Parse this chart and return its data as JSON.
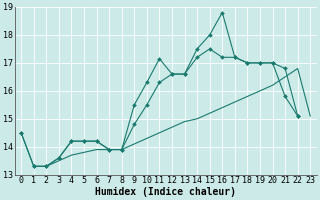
{
  "xlabel": "Humidex (Indice chaleur)",
  "ylabel": "",
  "xlim": [
    -0.5,
    23.5
  ],
  "ylim": [
    13,
    19
  ],
  "yticks": [
    13,
    14,
    15,
    16,
    17,
    18,
    19
  ],
  "xticks": [
    0,
    1,
    2,
    3,
    4,
    5,
    6,
    7,
    8,
    9,
    10,
    11,
    12,
    13,
    14,
    15,
    16,
    17,
    18,
    19,
    20,
    21,
    22,
    23
  ],
  "bg_color": "#cceae8",
  "line_color": "#1a7a6e",
  "grid_color": "#ffffff",
  "line1": [
    14.5,
    13.3,
    13.3,
    13.6,
    14.2,
    14.2,
    14.2,
    13.9,
    13.9,
    15.5,
    16.3,
    17.15,
    16.6,
    16.6,
    17.5,
    18.0,
    18.8,
    17.2,
    17.0,
    17.0,
    17.0,
    15.8,
    15.1
  ],
  "line2": [
    14.5,
    13.3,
    13.3,
    13.6,
    14.2,
    14.2,
    14.2,
    13.9,
    13.9,
    14.8,
    15.5,
    16.3,
    16.6,
    16.6,
    17.2,
    17.5,
    17.2,
    17.2,
    17.0,
    17.0,
    17.0,
    16.8,
    15.1
  ],
  "line3": [
    13.3,
    13.3,
    13.5,
    13.7,
    13.8,
    13.9,
    13.9,
    13.9,
    14.1,
    14.3,
    14.5,
    14.7,
    14.9,
    15.0,
    15.2,
    15.4,
    15.6,
    15.8,
    16.0,
    16.2,
    16.5,
    16.8,
    15.1
  ],
  "label_fontsize": 7,
  "tick_fontsize": 6
}
